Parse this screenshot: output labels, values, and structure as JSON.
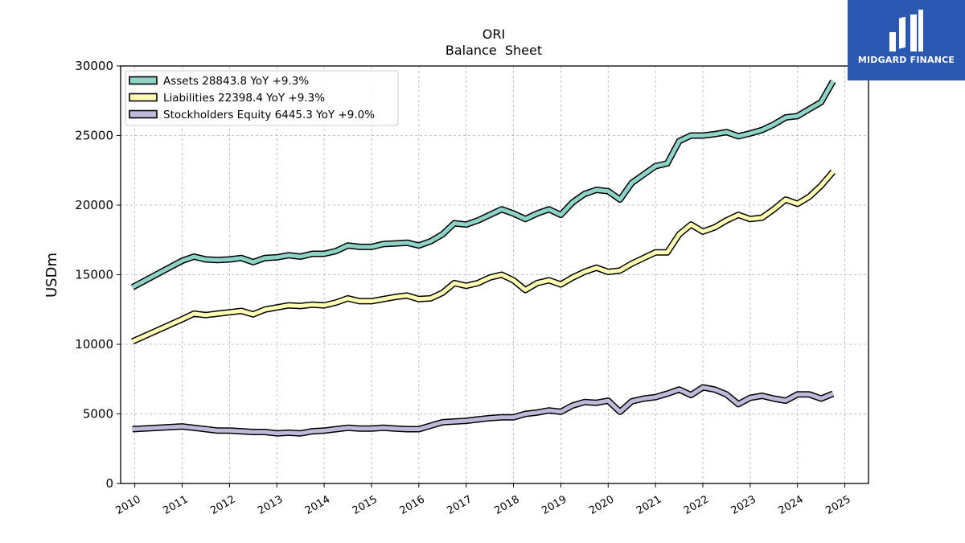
{
  "chart_data": {
    "type": "line",
    "title": "ORI",
    "subtitle": "Balance  Sheet",
    "ylabel": "USDm",
    "xlabel": "",
    "ylim": [
      0,
      30000
    ],
    "yticks": [
      0,
      5000,
      10000,
      15000,
      20000,
      25000,
      30000
    ],
    "xlim": [
      2009.7,
      2025.5
    ],
    "xticks": [
      "2010",
      "2011",
      "2012",
      "2013",
      "2014",
      "2015",
      "2016",
      "2017",
      "2018",
      "2019",
      "2020",
      "2021",
      "2022",
      "2023",
      "2024",
      "2025"
    ],
    "grid": true,
    "legend_position": "top-left",
    "series": [
      {
        "name": "Assets",
        "legend_label": "Assets  28843.8 YoY +9.3%",
        "color": "#8dd3c7",
        "x": [
          2009.95,
          2011.0,
          2011.25,
          2011.5,
          2011.75,
          2012.0,
          2012.25,
          2012.5,
          2012.75,
          2013.0,
          2013.25,
          2013.5,
          2013.75,
          2014.0,
          2014.25,
          2014.5,
          2014.75,
          2015.0,
          2015.25,
          2015.5,
          2015.75,
          2016.0,
          2016.25,
          2016.5,
          2016.75,
          2017.0,
          2017.25,
          2017.5,
          2017.75,
          2018.0,
          2018.25,
          2018.5,
          2018.75,
          2019.0,
          2019.25,
          2019.5,
          2019.75,
          2020.0,
          2020.25,
          2020.5,
          2020.75,
          2021.0,
          2021.25,
          2021.5,
          2021.75,
          2022.0,
          2022.25,
          2022.5,
          2022.75,
          2023.0,
          2023.25,
          2023.5,
          2023.75,
          2024.0,
          2024.25,
          2024.5,
          2024.75
        ],
        "values": [
          14100,
          16000,
          16300,
          16100,
          16050,
          16100,
          16200,
          15900,
          16200,
          16250,
          16400,
          16300,
          16500,
          16500,
          16700,
          17100,
          17000,
          17000,
          17200,
          17250,
          17300,
          17100,
          17400,
          17900,
          18700,
          18600,
          18900,
          19300,
          19700,
          19400,
          19000,
          19400,
          19700,
          19300,
          20200,
          20800,
          21100,
          21000,
          20400,
          21600,
          22200,
          22800,
          23000,
          24600,
          25000,
          25000,
          25100,
          25250,
          24950,
          25150,
          25400,
          25800,
          26300,
          26400,
          26900,
          27400,
          28900
        ]
      },
      {
        "name": "Liabilities",
        "legend_label": "Liabilities  22398.4 YoY +9.3%",
        "color": "#ffffb3",
        "x": [
          2009.95,
          2011.0,
          2011.25,
          2011.5,
          2011.75,
          2012.0,
          2012.25,
          2012.5,
          2012.75,
          2013.0,
          2013.25,
          2013.5,
          2013.75,
          2014.0,
          2014.25,
          2014.5,
          2014.75,
          2015.0,
          2015.25,
          2015.5,
          2015.75,
          2016.0,
          2016.25,
          2016.5,
          2016.75,
          2017.0,
          2017.25,
          2017.5,
          2017.75,
          2018.0,
          2018.25,
          2018.5,
          2018.75,
          2019.0,
          2019.25,
          2019.5,
          2019.75,
          2020.0,
          2020.25,
          2020.5,
          2020.75,
          2021.0,
          2021.25,
          2021.5,
          2021.75,
          2022.0,
          2022.25,
          2022.5,
          2022.75,
          2023.0,
          2023.25,
          2023.5,
          2023.75,
          2024.0,
          2024.25,
          2024.5,
          2024.75
        ],
        "values": [
          10200,
          11800,
          12200,
          12100,
          12200,
          12300,
          12400,
          12150,
          12500,
          12650,
          12800,
          12750,
          12850,
          12800,
          13000,
          13300,
          13100,
          13100,
          13250,
          13400,
          13500,
          13250,
          13300,
          13700,
          14400,
          14200,
          14400,
          14800,
          15000,
          14600,
          13900,
          14400,
          14600,
          14300,
          14800,
          15200,
          15500,
          15200,
          15300,
          15800,
          16200,
          16600,
          16600,
          17900,
          18600,
          18100,
          18400,
          18900,
          19300,
          19000,
          19100,
          19700,
          20400,
          20100,
          20600,
          21400,
          22400
        ]
      },
      {
        "name": "Stockholders Equity",
        "legend_label": "Stockholders Equity  6445.3 YoY +9.0%",
        "color": "#bebada",
        "x": [
          2009.95,
          2011.0,
          2011.25,
          2011.5,
          2011.75,
          2012.0,
          2012.25,
          2012.5,
          2012.75,
          2013.0,
          2013.25,
          2013.5,
          2013.75,
          2014.0,
          2014.25,
          2014.5,
          2014.75,
          2015.0,
          2015.25,
          2015.5,
          2015.75,
          2016.0,
          2016.25,
          2016.5,
          2016.75,
          2017.0,
          2017.25,
          2017.5,
          2017.75,
          2018.0,
          2018.25,
          2018.5,
          2018.75,
          2019.0,
          2019.25,
          2019.5,
          2019.75,
          2020.0,
          2020.25,
          2020.5,
          2020.75,
          2021.0,
          2021.25,
          2021.5,
          2021.75,
          2022.0,
          2022.25,
          2022.5,
          2022.75,
          2023.0,
          2023.25,
          2023.5,
          2023.75,
          2024.0,
          2024.25,
          2024.5,
          2024.75
        ],
        "values": [
          3900,
          4100,
          4000,
          3900,
          3800,
          3800,
          3750,
          3700,
          3700,
          3600,
          3650,
          3600,
          3750,
          3800,
          3900,
          4000,
          3950,
          3950,
          4000,
          3950,
          3900,
          3900,
          4150,
          4400,
          4450,
          4500,
          4600,
          4700,
          4750,
          4750,
          5000,
          5100,
          5250,
          5150,
          5600,
          5850,
          5800,
          5950,
          5150,
          5900,
          6100,
          6200,
          6450,
          6750,
          6350,
          6900,
          6750,
          6400,
          5700,
          6150,
          6300,
          6100,
          5950,
          6400,
          6400,
          6100,
          6450
        ]
      }
    ]
  },
  "logo": {
    "text": "MIDGARD FINANCE",
    "background": "#2b58b0",
    "icon": "midgard-logo-icon"
  }
}
